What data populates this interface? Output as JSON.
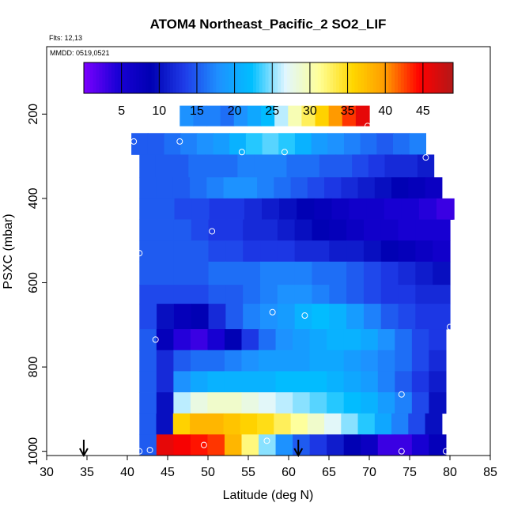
{
  "chart_data": {
    "type": "heatmap",
    "title": "ATOM4 Northeast_Pacific_2 SO2_LIF",
    "subtitle_flights": "Flts: 12,13",
    "subtitle_dates": "MMDD: 0519,0521",
    "xlabel": "Latitude (deg N)",
    "ylabel": "PSXC (mbar)",
    "xlim": [
      30,
      85
    ],
    "ylim": [
      1010,
      40
    ],
    "x_ticks": [
      "30",
      "35",
      "40",
      "45",
      "50",
      "55",
      "60",
      "65",
      "70",
      "75",
      "80",
      "85"
    ],
    "y_ticks": [
      "200",
      "400",
      "600",
      "800",
      "1000"
    ],
    "colorbar": {
      "range": [
        0,
        49
      ],
      "tick_labels": [
        "5",
        "10",
        "15",
        "20",
        "25",
        "30",
        "35",
        "40",
        "45"
      ],
      "colors": [
        "#7d00ff",
        "#1a00d6",
        "#0000b3",
        "#1f3ce8",
        "#1e90ff",
        "#00bfff",
        "#e0f6ff",
        "#ffff99",
        "#ffd700",
        "#ff9900",
        "#ff0000",
        "#b21818"
      ]
    },
    "bins": [
      {
        "p_top": 180,
        "p_bot": 228,
        "x0": 46.5,
        "x1": 70.0,
        "values": [
          18,
          17,
          17,
          16,
          18,
          20,
          22,
          26,
          30,
          33,
          36,
          40,
          43,
          46
        ]
      },
      {
        "p_top": 245,
        "p_bot": 296,
        "x0": 40.5,
        "x1": 77.0,
        "values": [
          15,
          15,
          16,
          17,
          18,
          19,
          21,
          23,
          24,
          23,
          21,
          19,
          18,
          17,
          16,
          15,
          16,
          17
        ]
      },
      {
        "p_top": 296,
        "p_bot": 350,
        "x0": 41.5,
        "x1": 78.0,
        "values": [
          15,
          15,
          15,
          16,
          16,
          16,
          17,
          17,
          17,
          16,
          16,
          15,
          15,
          14,
          13,
          12,
          12,
          11
        ]
      },
      {
        "p_top": 350,
        "p_bot": 400,
        "x0": 41.5,
        "x1": 79.0,
        "values": [
          15,
          15,
          15,
          16,
          17,
          18,
          18,
          17,
          16,
          15,
          14,
          13,
          12,
          11,
          10,
          9,
          8,
          7
        ]
      },
      {
        "p_top": 400,
        "p_bot": 450,
        "x0": 41.5,
        "x1": 80.5,
        "values": [
          15,
          15,
          14,
          14,
          13,
          13,
          12,
          11,
          10,
          9,
          8,
          7,
          6,
          6,
          5,
          5,
          4,
          3
        ]
      },
      {
        "p_top": 450,
        "p_bot": 500,
        "x0": 41.5,
        "x1": 80.0,
        "values": [
          15,
          15,
          15,
          14,
          13,
          13,
          12,
          12,
          11,
          10,
          9,
          8,
          7,
          6,
          6,
          5,
          5,
          5
        ]
      },
      {
        "p_top": 500,
        "p_bot": 550,
        "x0": 41.5,
        "x1": 80.0,
        "values": [
          15,
          15,
          15,
          15,
          14,
          14,
          13,
          13,
          13,
          12,
          12,
          11,
          11,
          10,
          9,
          8,
          7,
          6
        ]
      },
      {
        "p_top": 550,
        "p_bot": 605,
        "x0": 41.5,
        "x1": 80.0,
        "values": [
          15,
          15,
          15,
          15,
          16,
          16,
          16,
          17,
          17,
          17,
          16,
          16,
          15,
          14,
          13,
          12,
          11,
          10
        ]
      },
      {
        "p_top": 605,
        "p_bot": 650,
        "x0": 41.5,
        "x1": 80.0,
        "values": [
          14,
          14,
          14,
          14,
          15,
          15,
          16,
          17,
          18,
          18,
          17,
          16,
          15,
          14,
          13,
          13,
          12,
          12
        ]
      },
      {
        "p_top": 650,
        "p_bot": 710,
        "x0": 41.5,
        "x1": 80.0,
        "values": [
          14,
          10,
          8,
          9,
          12,
          15,
          17,
          18,
          19,
          21,
          22,
          21,
          19,
          17,
          15,
          14,
          13,
          13
        ]
      },
      {
        "p_top": 710,
        "p_bot": 760,
        "x0": 41.5,
        "x1": 79.5,
        "values": [
          15,
          8,
          4,
          3,
          5,
          9,
          13,
          16,
          18,
          19,
          20,
          21,
          21,
          20,
          18,
          16,
          14,
          13
        ]
      },
      {
        "p_top": 760,
        "p_bot": 810,
        "x0": 41.5,
        "x1": 79.5,
        "values": [
          15,
          12,
          15,
          16,
          16,
          17,
          18,
          19,
          19,
          19,
          20,
          20,
          19,
          18,
          17,
          16,
          14,
          12
        ]
      },
      {
        "p_top": 810,
        "p_bot": 860,
        "x0": 41.5,
        "x1": 79.5,
        "values": [
          15,
          12,
          18,
          20,
          21,
          21,
          21,
          21,
          22,
          22,
          22,
          21,
          20,
          19,
          17,
          15,
          13,
          11
        ]
      },
      {
        "p_top": 860,
        "p_bot": 910,
        "x0": 41.5,
        "x1": 79.5,
        "values": [
          15,
          10,
          26,
          28,
          29,
          29,
          28,
          27,
          26,
          25,
          24,
          23,
          22,
          21,
          19,
          17,
          14,
          10
        ]
      },
      {
        "p_top": 910,
        "p_bot": 960,
        "x0": 41.5,
        "x1": 79.0,
        "values": [
          15,
          10,
          36,
          38,
          38,
          37,
          36,
          35,
          33,
          31,
          29,
          27,
          25,
          23,
          20,
          17,
          14,
          10
        ]
      },
      {
        "p_top": 960,
        "p_bot": 1010,
        "x0": 41.5,
        "x1": 79.5,
        "values": [
          15,
          46,
          45,
          44,
          43,
          38,
          32,
          25,
          18,
          15,
          13,
          11,
          9,
          7,
          3,
          3,
          5,
          8
        ]
      }
    ],
    "observations": [
      {
        "lat": 40.8,
        "p": 265
      },
      {
        "lat": 46.5,
        "p": 265
      },
      {
        "lat": 54.2,
        "p": 290
      },
      {
        "lat": 59.5,
        "p": 290
      },
      {
        "lat": 77.0,
        "p": 303
      },
      {
        "lat": 69.8,
        "p": 228
      },
      {
        "lat": 80.5,
        "p": 458
      },
      {
        "lat": 50.5,
        "p": 478
      },
      {
        "lat": 41.5,
        "p": 530
      },
      {
        "lat": 43.5,
        "p": 735
      },
      {
        "lat": 58.0,
        "p": 670
      },
      {
        "lat": 62.0,
        "p": 678
      },
      {
        "lat": 80.0,
        "p": 705
      },
      {
        "lat": 74.0,
        "p": 865
      },
      {
        "lat": 41.5,
        "p": 1000
      },
      {
        "lat": 42.8,
        "p": 997
      },
      {
        "lat": 49.5,
        "p": 985
      },
      {
        "lat": 57.3,
        "p": 975
      },
      {
        "lat": 74.0,
        "p": 1000
      },
      {
        "lat": 79.5,
        "p": 1000
      }
    ],
    "arrows": [
      {
        "lat": 34.6
      },
      {
        "lat": 61.2
      }
    ]
  }
}
